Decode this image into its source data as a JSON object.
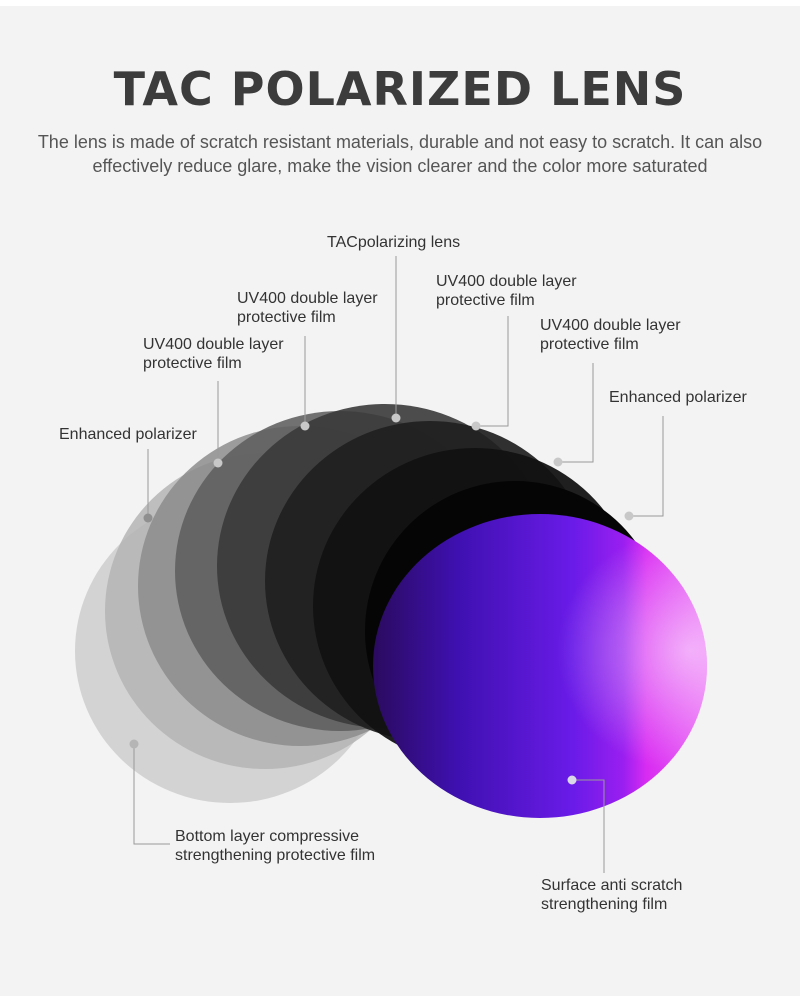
{
  "header": {
    "title": "TAC POLARIZED LENS",
    "description": "The lens is made of scratch resistant materials, durable and not easy to scratch. It can also effectively reduce glare, make the vision clearer and the color more saturated"
  },
  "labels": {
    "tac_polarizing_lens": "TACpolarizing lens",
    "uv400_film_a": "UV400 double layer\nprotective film",
    "uv400_film_b": "UV400 double layer\nprotective film",
    "uv400_film_c": "UV400 double layer\nprotective film",
    "uv400_film_d": "UV400 double layer\nprotective film",
    "enhanced_polarizer_left": "Enhanced polarizer",
    "enhanced_polarizer_right": "Enhanced polarizer",
    "bottom_layer": "Bottom layer compressive\nstrengthening protective film",
    "surface_layer": "Surface anti scratch\nstrengthening film"
  },
  "colors": {
    "background": "#f3f3f3",
    "title": "#3c3c3c",
    "leader_line": "#9a9a9a",
    "surface_lens_dark": "#3a0a8a",
    "surface_lens_purple": "#6a1be8",
    "surface_lens_magenta": "#d92cf2"
  }
}
